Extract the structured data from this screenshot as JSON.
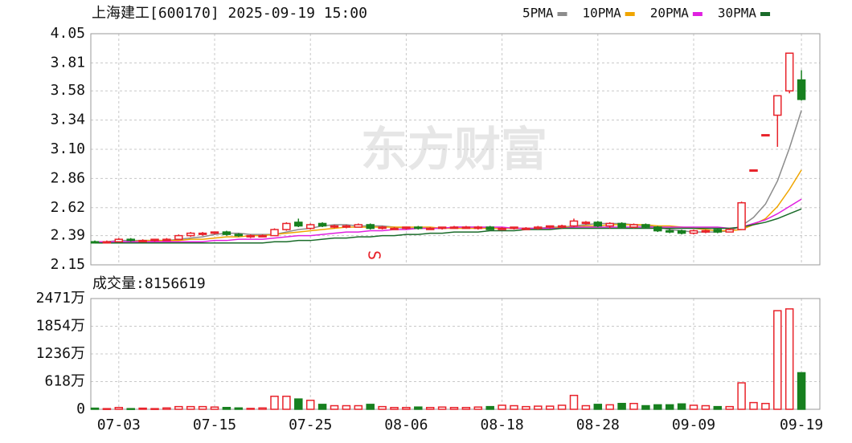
{
  "chart_data": [
    {
      "type": "candlestick",
      "title": "上海建工[600170] 2025-09-19 15:00",
      "watermark": "东方财富",
      "annotation": "S",
      "up_color": "#e8232b",
      "down_color": "#17801f",
      "categories": [
        null,
        null,
        "07-03",
        null,
        null,
        null,
        null,
        null,
        null,
        null,
        "07-15",
        null,
        null,
        null,
        null,
        null,
        null,
        null,
        "07-25",
        null,
        null,
        null,
        null,
        null,
        null,
        null,
        "08-06",
        null,
        null,
        null,
        null,
        null,
        null,
        null,
        "08-18",
        null,
        null,
        null,
        null,
        null,
        null,
        null,
        "08-28",
        null,
        null,
        null,
        null,
        null,
        null,
        null,
        "09-09",
        null,
        null,
        null,
        null,
        null,
        null,
        null,
        null,
        "09-19"
      ],
      "open": [
        2.34,
        2.33,
        2.34,
        2.36,
        2.34,
        2.35,
        2.35,
        2.36,
        2.39,
        2.4,
        2.41,
        2.42,
        2.4,
        2.38,
        2.38,
        2.39,
        2.44,
        2.5,
        2.45,
        2.49,
        2.46,
        2.46,
        2.46,
        2.48,
        2.45,
        2.44,
        2.45,
        2.46,
        2.44,
        2.45,
        2.45,
        2.45,
        2.45,
        2.46,
        2.44,
        2.45,
        2.44,
        2.45,
        2.46,
        2.46,
        2.47,
        2.49,
        2.5,
        2.47,
        2.49,
        2.46,
        2.48,
        2.46,
        2.43,
        2.43,
        2.41,
        2.42,
        2.44,
        2.42,
        2.44,
        2.93,
        3.22,
        3.38,
        3.58,
        3.67
      ],
      "high": [
        2.35,
        2.35,
        2.37,
        2.37,
        2.36,
        2.36,
        2.37,
        2.4,
        2.42,
        2.42,
        2.42,
        2.43,
        2.41,
        2.4,
        2.4,
        2.45,
        2.5,
        2.53,
        2.49,
        2.5,
        2.48,
        2.48,
        2.49,
        2.49,
        2.47,
        2.46,
        2.46,
        2.47,
        2.46,
        2.46,
        2.47,
        2.47,
        2.47,
        2.47,
        2.46,
        2.46,
        2.46,
        2.47,
        2.47,
        2.48,
        2.53,
        2.51,
        2.51,
        2.5,
        2.5,
        2.49,
        2.49,
        2.47,
        2.45,
        2.44,
        2.44,
        2.44,
        2.45,
        2.45,
        2.67,
        2.93,
        3.22,
        3.54,
        3.89,
        3.75
      ],
      "low": [
        2.33,
        2.33,
        2.34,
        2.34,
        2.34,
        2.34,
        2.35,
        2.36,
        2.38,
        2.39,
        2.4,
        2.39,
        2.38,
        2.37,
        2.38,
        2.39,
        2.43,
        2.46,
        2.44,
        2.46,
        2.45,
        2.45,
        2.46,
        2.44,
        2.44,
        2.44,
        2.44,
        2.44,
        2.44,
        2.44,
        2.45,
        2.45,
        2.44,
        2.44,
        2.44,
        2.44,
        2.44,
        2.44,
        2.45,
        2.45,
        2.46,
        2.48,
        2.46,
        2.45,
        2.45,
        2.45,
        2.45,
        2.42,
        2.41,
        2.4,
        2.4,
        2.41,
        2.41,
        2.42,
        2.44,
        2.93,
        3.22,
        3.12,
        3.56,
        3.5
      ],
      "close": [
        2.33,
        2.34,
        2.36,
        2.35,
        2.35,
        2.36,
        2.36,
        2.39,
        2.41,
        2.41,
        2.42,
        2.4,
        2.39,
        2.39,
        2.39,
        2.44,
        2.49,
        2.47,
        2.48,
        2.47,
        2.47,
        2.47,
        2.48,
        2.45,
        2.46,
        2.45,
        2.46,
        2.45,
        2.45,
        2.46,
        2.46,
        2.46,
        2.46,
        2.44,
        2.45,
        2.46,
        2.45,
        2.46,
        2.47,
        2.47,
        2.51,
        2.5,
        2.47,
        2.49,
        2.46,
        2.48,
        2.46,
        2.43,
        2.42,
        2.41,
        2.43,
        2.43,
        2.42,
        2.44,
        2.66,
        2.93,
        3.22,
        3.54,
        3.89,
        3.51
      ],
      "series": [
        {
          "name": "5PMA",
          "color": "#8c8c8c",
          "values": [
            2.34,
            2.34,
            2.35,
            2.35,
            2.35,
            2.35,
            2.35,
            2.36,
            2.37,
            2.38,
            2.4,
            2.41,
            2.41,
            2.4,
            2.4,
            2.4,
            2.42,
            2.44,
            2.45,
            2.47,
            2.48,
            2.48,
            2.47,
            2.47,
            2.47,
            2.46,
            2.45,
            2.45,
            2.45,
            2.45,
            2.46,
            2.46,
            2.46,
            2.45,
            2.45,
            2.45,
            2.45,
            2.45,
            2.46,
            2.46,
            2.47,
            2.48,
            2.49,
            2.49,
            2.49,
            2.48,
            2.47,
            2.46,
            2.44,
            2.43,
            2.42,
            2.42,
            2.42,
            2.43,
            2.47,
            2.54,
            2.65,
            2.84,
            3.11,
            3.42
          ]
        },
        {
          "name": "10PMA",
          "color": "#f0a500",
          "values": [
            2.34,
            2.34,
            2.34,
            2.34,
            2.35,
            2.35,
            2.35,
            2.35,
            2.36,
            2.36,
            2.37,
            2.38,
            2.38,
            2.39,
            2.39,
            2.4,
            2.41,
            2.42,
            2.43,
            2.44,
            2.45,
            2.46,
            2.46,
            2.46,
            2.46,
            2.46,
            2.46,
            2.46,
            2.46,
            2.45,
            2.45,
            2.45,
            2.45,
            2.45,
            2.45,
            2.45,
            2.45,
            2.45,
            2.45,
            2.46,
            2.46,
            2.47,
            2.47,
            2.48,
            2.48,
            2.48,
            2.48,
            2.47,
            2.47,
            2.46,
            2.45,
            2.44,
            2.43,
            2.43,
            2.44,
            2.48,
            2.53,
            2.63,
            2.77,
            2.93
          ]
        },
        {
          "name": "20PMA",
          "color": "#e020e0",
          "values": [
            2.34,
            2.34,
            2.34,
            2.34,
            2.34,
            2.34,
            2.34,
            2.34,
            2.34,
            2.34,
            2.35,
            2.35,
            2.36,
            2.36,
            2.36,
            2.37,
            2.38,
            2.39,
            2.39,
            2.4,
            2.41,
            2.42,
            2.42,
            2.43,
            2.43,
            2.44,
            2.44,
            2.45,
            2.45,
            2.45,
            2.46,
            2.46,
            2.46,
            2.46,
            2.46,
            2.45,
            2.45,
            2.45,
            2.45,
            2.45,
            2.46,
            2.46,
            2.46,
            2.46,
            2.46,
            2.46,
            2.46,
            2.46,
            2.46,
            2.46,
            2.46,
            2.46,
            2.46,
            2.45,
            2.46,
            2.49,
            2.52,
            2.57,
            2.63,
            2.69
          ]
        },
        {
          "name": "30PMA",
          "color": "#1a6b2a",
          "values": [
            2.33,
            2.33,
            2.33,
            2.33,
            2.33,
            2.33,
            2.33,
            2.33,
            2.33,
            2.33,
            2.33,
            2.33,
            2.33,
            2.33,
            2.33,
            2.34,
            2.34,
            2.35,
            2.35,
            2.36,
            2.37,
            2.37,
            2.38,
            2.38,
            2.39,
            2.39,
            2.4,
            2.4,
            2.41,
            2.41,
            2.42,
            2.42,
            2.42,
            2.43,
            2.43,
            2.43,
            2.44,
            2.44,
            2.44,
            2.45,
            2.45,
            2.45,
            2.45,
            2.45,
            2.45,
            2.45,
            2.45,
            2.45,
            2.45,
            2.45,
            2.45,
            2.45,
            2.45,
            2.45,
            2.46,
            2.48,
            2.5,
            2.53,
            2.57,
            2.61
          ]
        }
      ],
      "ylim": [
        2.15,
        4.05
      ],
      "yticks": [
        2.15,
        2.39,
        2.62,
        2.86,
        {
          "value": 3.1,
          "label": "3.10"
        },
        3.34,
        3.58,
        3.81,
        4.05
      ],
      "grid": true
    },
    {
      "type": "bar",
      "title": "成交量:8156619",
      "categories": [
        null,
        null,
        "07-03",
        null,
        null,
        null,
        null,
        null,
        null,
        null,
        "07-15",
        null,
        null,
        null,
        null,
        null,
        null,
        null,
        "07-25",
        null,
        null,
        null,
        null,
        null,
        null,
        null,
        "08-06",
        null,
        null,
        null,
        null,
        null,
        null,
        null,
        "08-18",
        null,
        null,
        null,
        null,
        null,
        null,
        null,
        "08-28",
        null,
        null,
        null,
        null,
        null,
        null,
        null,
        "09-09",
        null,
        null,
        null,
        null,
        null,
        null,
        null,
        null,
        "09-19"
      ],
      "values": [
        25,
        15,
        40,
        15,
        25,
        15,
        30,
        60,
        60,
        60,
        50,
        40,
        30,
        20,
        30,
        290,
        290,
        230,
        200,
        110,
        80,
        80,
        80,
        110,
        60,
        40,
        40,
        50,
        40,
        50,
        40,
        40,
        50,
        60,
        90,
        80,
        60,
        70,
        70,
        90,
        310,
        80,
        110,
        100,
        130,
        130,
        80,
        100,
        100,
        120,
        90,
        80,
        60,
        60,
        590,
        150,
        130,
        2200,
        2240,
        815.6619
      ],
      "ylim": [
        0,
        2471
      ],
      "yticks": [
        0,
        {
          "value": 618,
          "label": "618万"
        },
        {
          "value": 1236,
          "label": "1236万"
        },
        {
          "value": 1854,
          "label": "1854万"
        },
        {
          "value": 2471,
          "label": "2471万"
        }
      ],
      "grid": true
    }
  ]
}
